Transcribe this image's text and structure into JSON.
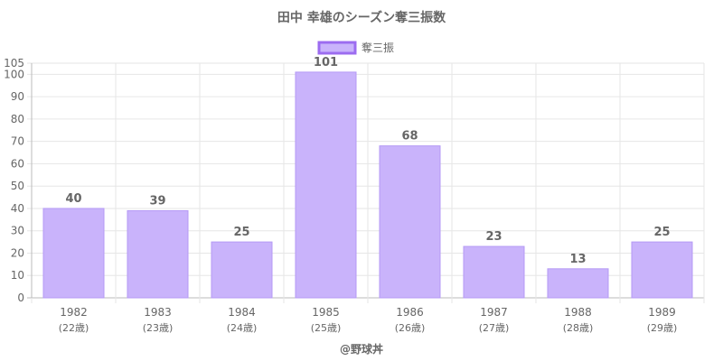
{
  "chart_data": {
    "type": "bar",
    "title": "田中 幸雄のシーズン奪三振数",
    "legend": {
      "label": "奪三振",
      "placement": "top-center"
    },
    "categories": [
      "1982",
      "1983",
      "1984",
      "1985",
      "1986",
      "1987",
      "1988",
      "1989"
    ],
    "category_sublabels": [
      "(22歳)",
      "(23歳)",
      "(24歳)",
      "(25歳)",
      "(26歳)",
      "(27歳)",
      "(28歳)",
      "(29歳)"
    ],
    "series": [
      {
        "name": "奪三振",
        "values": [
          40,
          39,
          25,
          101,
          68,
          23,
          13,
          25
        ]
      }
    ],
    "ylim": [
      0,
      105
    ],
    "yticks": [
      0,
      10,
      20,
      30,
      40,
      50,
      60,
      70,
      80,
      90,
      100,
      105
    ],
    "grid": true,
    "bar_fill": "#c9b3fb",
    "bar_stroke": "#b59af5",
    "legend_stroke": "#9c6cf0",
    "footer": "@野球丼"
  }
}
